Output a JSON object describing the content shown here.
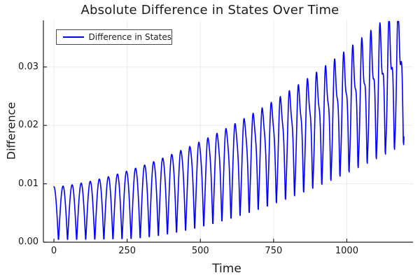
{
  "chart_data": {
    "type": "line",
    "title": "Absolute Difference in States Over Time",
    "xlabel": "Time",
    "ylabel": "Difference",
    "grid": true,
    "legend": {
      "position": "top-left",
      "entries": [
        {
          "label": "Difference in States",
          "color": "#0000ff"
        }
      ]
    },
    "xlim": [
      -36,
      1226
    ],
    "ylim": [
      0,
      0.038
    ],
    "x_ticks": [
      0,
      250,
      500,
      750,
      1000
    ],
    "x_tick_labels": [
      "0",
      "250",
      "500",
      "750",
      "1000"
    ],
    "y_ticks": [
      0,
      0.01,
      0.02,
      0.03
    ],
    "y_tick_labels": [
      "0.00",
      "0.01",
      "0.02",
      "0.03"
    ],
    "series": [
      {
        "name": "Difference in States",
        "color": "#0000ff",
        "line_width": 1.6,
        "t_start": 0,
        "t_end": 1195,
        "t_step": 1,
        "n_oscillations": 39,
        "oscillation_period": 31,
        "shape_notes": "absolute-value oscillation: rounded peaks, sharp V troughs; peaks grow from 0.010 to 0.038; trough floor rises from ~0 after t=500 to ~0.016; cycles develop secondary notch/double-peak after t~700",
        "model": {
          "hump_period": 31,
          "phase_shift": 15.5,
          "peak_envelope": {
            "base": 0.0095,
            "coef": 6.8e-07,
            "power": 1.5
          },
          "trough_envelope": {
            "scale": 0.016,
            "t_offset": 250,
            "t_span": 950,
            "power": 1.6
          },
          "wiggle": {
            "scale": 0.005,
            "power": 2.5,
            "phase": 3.14159,
            "t_norm": 1200
          },
          "y_floor": 0.0002,
          "y_cap": 0.0378
        },
        "envelope_samples": {
          "t": [
            0,
            100,
            200,
            300,
            400,
            500,
            600,
            700,
            800,
            900,
            1000,
            1100,
            1200
          ],
          "peak": [
            0.01,
            0.0102,
            0.0114,
            0.013,
            0.0149,
            0.0171,
            0.0195,
            0.0221,
            0.0249,
            0.0279,
            0.031,
            0.0343,
            0.0378
          ],
          "trough": [
            0.0002,
            0.0002,
            0.0003,
            0.0004,
            0.0008,
            0.0019,
            0.0032,
            0.0048,
            0.0067,
            0.0087,
            0.011,
            0.0134,
            0.016
          ]
        }
      }
    ],
    "style": {
      "line_color": "#0000ff",
      "spine_color": "#242424",
      "grid_color": "#ececec",
      "tick_color": "#242424",
      "background": "#ffffff"
    }
  }
}
